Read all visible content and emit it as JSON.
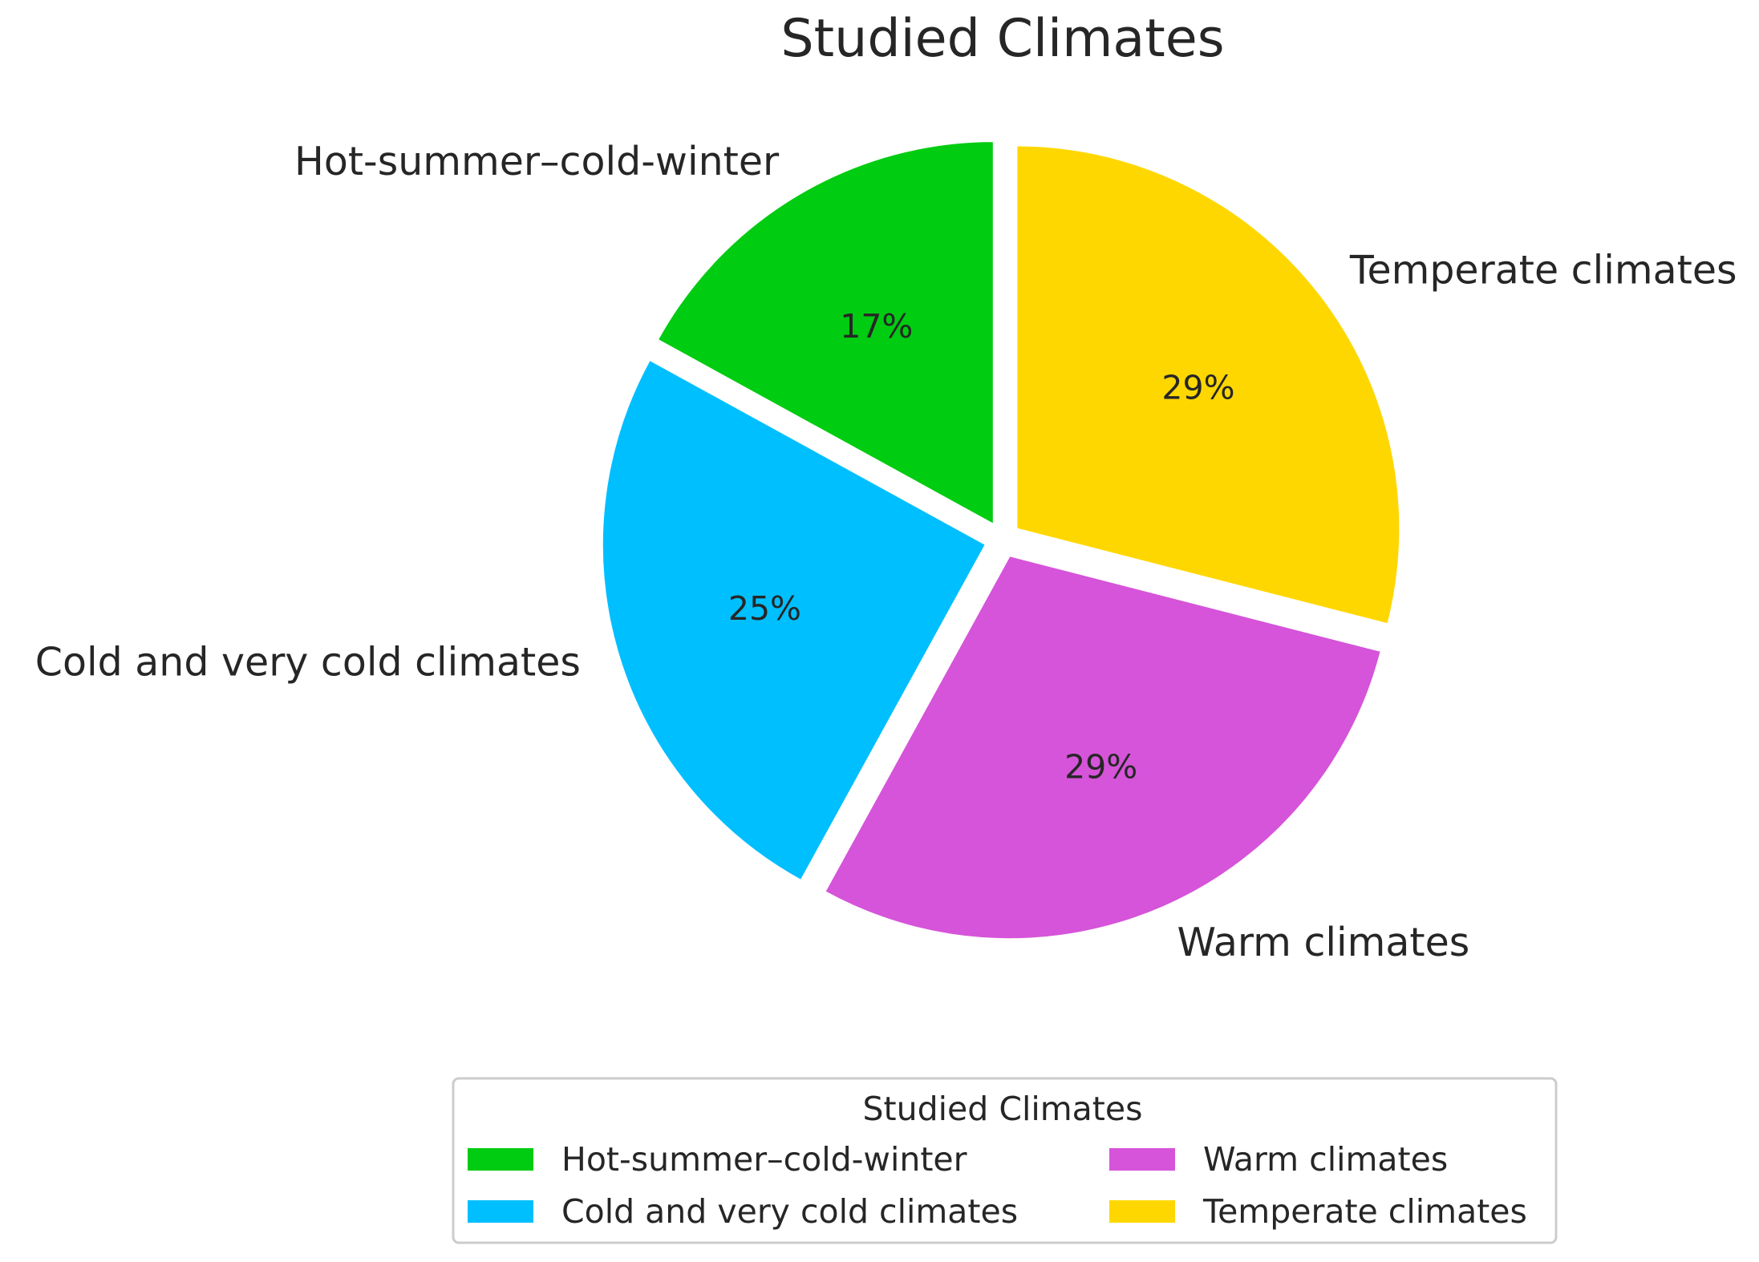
{
  "chart_data": {
    "type": "pie",
    "title": "Studied Climates",
    "slices": [
      {
        "label": "Hot-summer–cold-winter",
        "value": 17,
        "value_label": "17%",
        "color": "#00CC11"
      },
      {
        "label": "Cold and very cold climates",
        "value": 25,
        "value_label": "25%",
        "color": "#00BFFF"
      },
      {
        "label": "Warm climates",
        "value": 29,
        "value_label": "29%",
        "color": "#D554D9"
      },
      {
        "label": "Temperate climates",
        "value": 29,
        "value_label": "29%",
        "color": "#FFD700"
      }
    ],
    "start_angle": 90,
    "direction": "counterclockwise",
    "exploded": true,
    "legend": {
      "title": "Studied Climates",
      "placement": "bottom-center",
      "columns": 2
    }
  }
}
